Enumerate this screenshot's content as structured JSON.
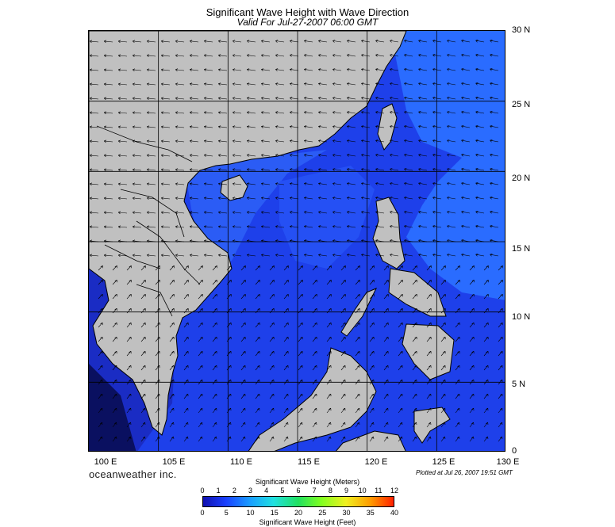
{
  "header": {
    "title": "Significant Wave Height with Wave Direction",
    "subtitle": "Valid For Jul-27-2007 06:00 GMT"
  },
  "map": {
    "lat_labels": [
      "30 N",
      "25 N",
      "20 N",
      "15 N",
      "10 N",
      "5 N",
      "0"
    ],
    "lon_labels": [
      "100 E",
      "105 E",
      "110 E",
      "115 E",
      "120 E",
      "125 E",
      "130 E"
    ],
    "lat_range": [
      0,
      30
    ],
    "lon_range": [
      100,
      130
    ],
    "grid": true,
    "colors": {
      "land": "#c0c0c0",
      "sea_deep": "#1e3ee8",
      "sea_bright": "#2a6cff",
      "sea_dark": "#1a2ab8",
      "coast": "#000000"
    }
  },
  "footer": {
    "brand": "oceanweather inc.",
    "plotted": "Plotted at Jul 26, 2007 19:51 GMT"
  },
  "legend": {
    "meters_title": "Significant Wave Height (Meters)",
    "feet_title": "Significant Wave Height (Feet)",
    "meter_ticks": [
      "0",
      "1",
      "2",
      "3",
      "4",
      "5",
      "6",
      "7",
      "8",
      "9",
      "10",
      "11",
      "12"
    ],
    "feet_ticks": [
      "0",
      "5",
      "10",
      "15",
      "20",
      "25",
      "30",
      "35",
      "40"
    ]
  }
}
